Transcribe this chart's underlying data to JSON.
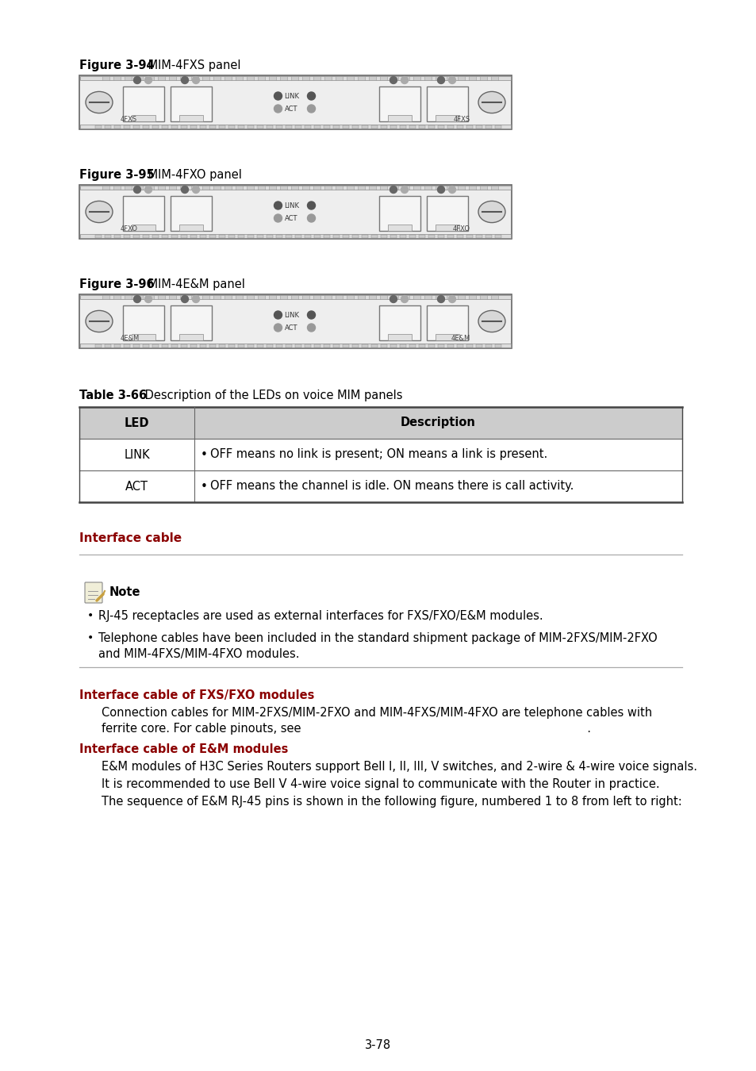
{
  "bg_color": "#ffffff",
  "fig_label_94_bold": "Figure 3-94",
  "fig_label_94_normal": " MIM-4FXS panel",
  "fig_label_95_bold": "Figure 3-95",
  "fig_label_95_normal": " MIM-4FXO panel",
  "fig_label_96_bold": "Figure 3-96",
  "fig_label_96_normal": " MIM-4E&M panel",
  "table_title_bold": "Table 3-66",
  "table_title_normal": " Description of the LEDs on voice MIM panels",
  "table_headers": [
    "LED",
    "Description"
  ],
  "table_rows": [
    [
      "LINK",
      "OFF means no link is present; ON means a link is present."
    ],
    [
      "ACT",
      "OFF means the channel is idle. ON means there is call activity."
    ]
  ],
  "section_interface_cable": "Interface cable",
  "note_label": "Note",
  "note_bullet1": "RJ-45 receptacles are used as external interfaces for FXS/FXO/E&M modules.",
  "note_bullet2a": "Telephone cables have been included in the standard shipment package of MIM-2FXS/MIM-2FXO",
  "note_bullet2b": "and MIM-4FXS/MIM-4FXO modules.",
  "section_fxsfxo": "Interface cable of FXS/FXO modules",
  "fxsfxo_para1": "Connection cables for MIM-2FXS/MIM-2FXO and MIM-4FXS/MIM-4FXO are telephone cables with",
  "fxsfxo_para2": "ferrite core. For cable pinouts, see                                                                              .",
  "section_em": "Interface cable of E&M modules",
  "em_para1": "E&M modules of H3C Series Routers support Bell I, II, III, V switches, and 2-wire & 4-wire voice signals.",
  "em_para2": "It is recommended to use Bell V 4-wire voice signal to communicate with the Router in practice.",
  "em_para3": "The sequence of E&M RJ-45 pins is shown in the following figure, numbered 1 to 8 from left to right:",
  "page_number": "3-78",
  "red_color": "#8B0000",
  "gray_header": "#c8c8c8",
  "line_color": "#aaaaaa",
  "panel_outer": "#f2f2f2",
  "panel_inner": "#ffffff",
  "screw_color": "#d0d0d0",
  "dot_dark": "#555555",
  "dot_light": "#aaaaaa"
}
